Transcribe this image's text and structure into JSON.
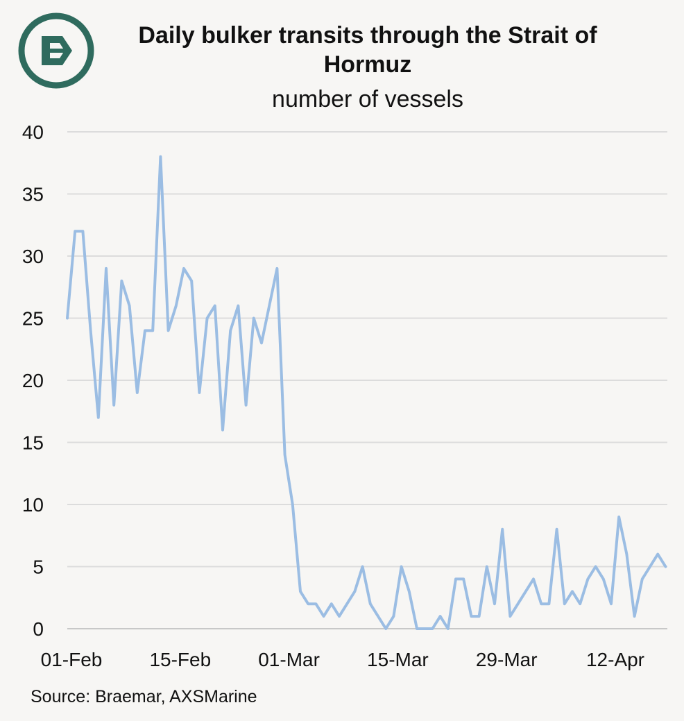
{
  "header": {
    "title": "Daily bulker transits through the Strait of Hormuz",
    "subtitle": "number of vessels"
  },
  "logo": {
    "icon": "braemar-b-logo-icon",
    "color": "#2f6b5e"
  },
  "source": "Source: Braemar, AXSMarine",
  "colors": {
    "line": "#9bbde3",
    "grid": "#dcdcdc",
    "logo": "#2f6b5e"
  },
  "chart_data": {
    "type": "line",
    "title": "Daily bulker transits through the Strait of Hormuz",
    "subtitle": "number of vessels",
    "xlabel": "",
    "ylabel": "",
    "ylim": [
      0,
      40
    ],
    "yticks": [
      "0",
      "5",
      "10",
      "15",
      "20",
      "25",
      "30",
      "35",
      "40"
    ],
    "x_start": "01-Feb",
    "xticks": [
      {
        "label": "01-Feb",
        "day": 0
      },
      {
        "label": "15-Feb",
        "day": 14
      },
      {
        "label": "01-Mar",
        "day": 28
      },
      {
        "label": "15-Mar",
        "day": 42
      },
      {
        "label": "29-Mar",
        "day": 56
      },
      {
        "label": "12-Apr",
        "day": 70
      }
    ],
    "grid": true,
    "legend": "none",
    "series": [
      {
        "values": [
          25,
          32,
          32,
          24,
          17,
          29,
          18,
          28,
          26,
          19,
          24,
          24,
          38,
          24,
          26,
          29,
          28,
          19,
          25,
          26,
          16,
          24,
          26,
          18,
          25,
          23,
          26,
          29,
          14,
          10,
          3,
          2,
          2,
          1,
          2,
          1,
          2,
          3,
          5,
          2,
          1,
          0,
          1,
          5,
          3,
          0,
          0,
          0,
          1,
          0,
          4,
          4,
          1,
          1,
          5,
          2,
          8,
          1,
          2,
          3,
          4,
          2,
          2,
          8,
          2,
          3,
          2,
          4,
          5,
          4,
          2,
          9,
          6,
          1,
          4,
          5,
          6,
          5
        ]
      }
    ]
  }
}
